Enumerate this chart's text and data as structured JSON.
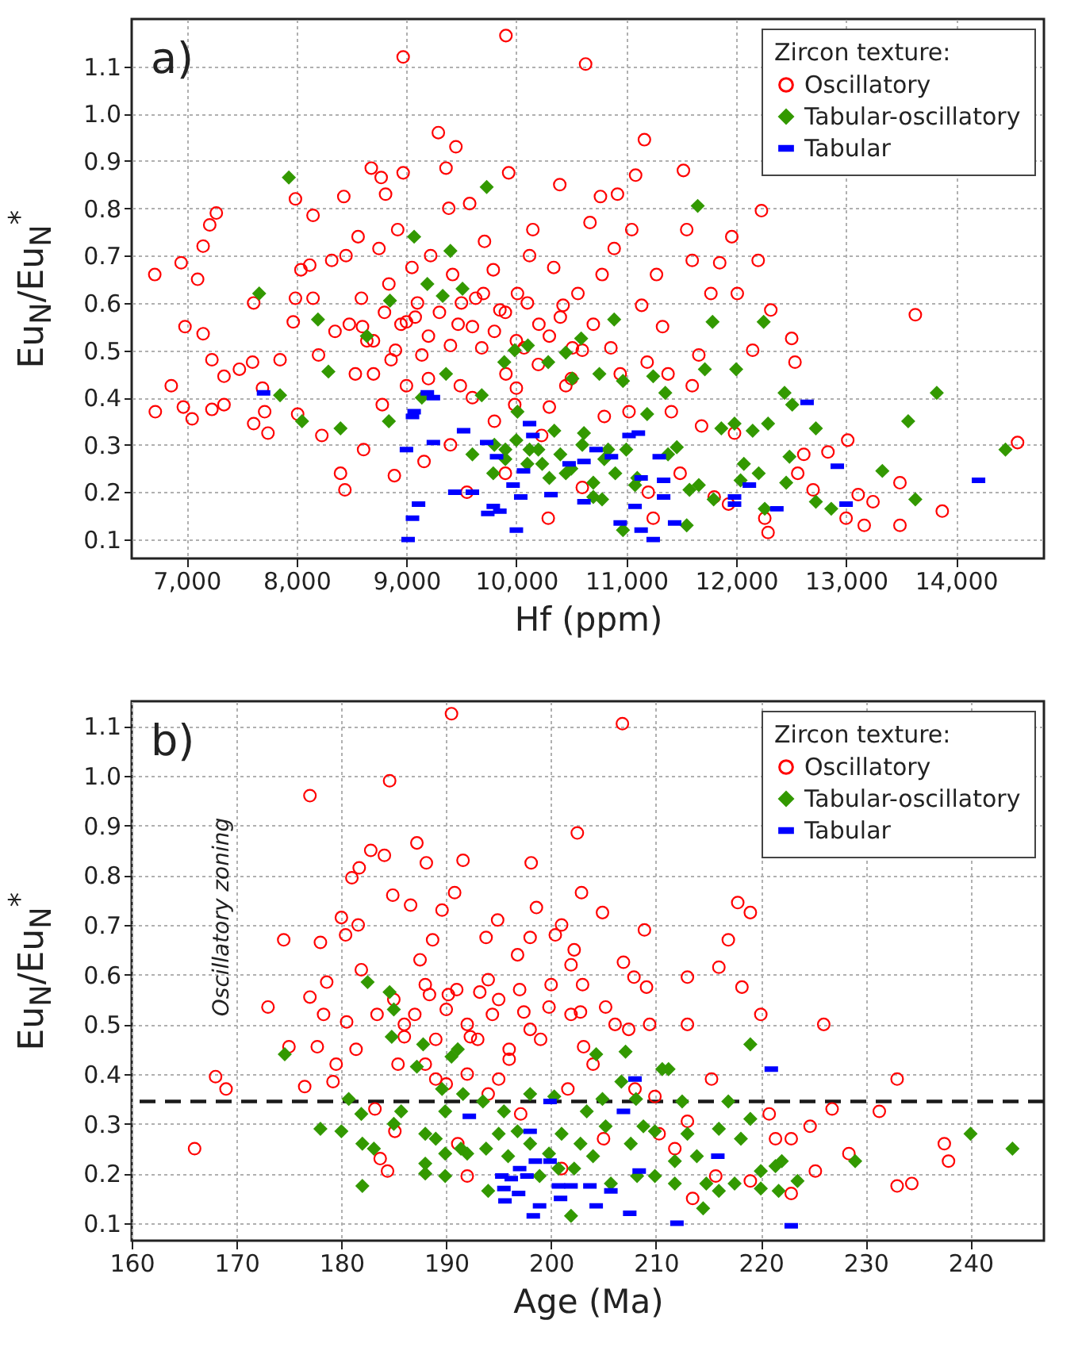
{
  "chart_data": [
    {
      "type": "scatter",
      "title": "a)",
      "xlabel": "Hf (ppm)",
      "ylabel": "Eu$_{N}$/Eu$_{N}$$^{*}$",
      "legend_title": "Zircon texture:",
      "legend": "top right",
      "grid": true,
      "xlim": [
        6500,
        14800
      ],
      "ylim": [
        0.06,
        1.2
      ],
      "xticks": [
        {
          "value": 7000,
          "label": "7,000"
        },
        {
          "value": 8000,
          "label": "8,000"
        },
        {
          "value": 9000,
          "label": "9,000"
        },
        {
          "value": 10000,
          "label": "10,000"
        },
        {
          "value": 11000,
          "label": "11,000"
        },
        {
          "value": 12000,
          "label": "12,000"
        },
        {
          "value": 13000,
          "label": "13,000"
        },
        {
          "value": 14000,
          "label": "14,000"
        }
      ],
      "yticks": [
        0.1,
        0.2,
        0.3,
        0.4,
        0.5,
        0.6,
        0.7,
        0.8,
        0.9,
        {
          "value": 1,
          "label": "1.0"
        },
        1.1
      ],
      "series": [
        {
          "name": "Oscillatory",
          "color": "#ff0000",
          "marker": "circle",
          "x": [
            6710,
            6715,
            6860,
            6950,
            6985,
            6970,
            7050,
            7100,
            7150,
            7150,
            7210,
            7270,
            7230,
            7230,
            7340,
            7340,
            7480,
            7600,
            7610,
            7610,
            7690,
            7740,
            7710,
            7850,
            7990,
            7990,
            7970,
            8040,
            8010,
            8120,
            8150,
            8150,
            8200,
            8230,
            8320,
            8350,
            8430,
            8450,
            8400,
            8440,
            8480,
            8535,
            8560,
            8590,
            8610,
            8640,
            8680,
            8750,
            8770,
            8810,
            8780,
            8840,
            8860,
            8890,
            8920,
            8950,
            8970,
            8970,
            9000,
            9050,
            9080,
            9140,
            9160,
            9220,
            9290,
            9360,
            9385,
            9450,
            9420,
            9470,
            9490,
            9550,
            9575,
            9630,
            9685,
            9710,
            9790,
            9850,
            9905,
            9905,
            9930,
            9985,
            10010,
            10070,
            10120,
            10150,
            10205,
            10230,
            10290,
            10340,
            10395,
            10425,
            10450,
            10510,
            10630,
            10560,
            10670,
            10700,
            10765,
            10780,
            10860,
            10890,
            10920,
            10945,
            11025,
            11050,
            11085,
            11165,
            11140,
            11190,
            11245,
            11275,
            11330,
            11380,
            11410,
            11490,
            11520,
            11550,
            11600,
            11600,
            11660,
            11685,
            11770,
            11850,
            11930,
            11960,
            12010,
            11985,
            12150,
            12200,
            12230,
            12260,
            12290,
            12315,
            12505,
            12535,
            12560,
            12615,
            12700,
            12835,
            13015,
            13000,
            13110,
            13165,
            13245,
            13490,
            13490,
            13630,
            13875,
            14560,
            8600,
            8700,
            8800,
            8900,
            9000,
            9100,
            9200,
            9300,
            9400,
            9500,
            9600,
            9700,
            9800,
            9900,
            10000,
            10100,
            10200,
            10300,
            10400,
            10500,
            10600,
            8700,
            9200,
            9600,
            9800,
            10000,
            10300,
            10800,
            9400,
            9900,
            10600,
            11200,
            11800
          ],
          "values": [
            0.66,
            0.37,
            0.425,
            0.685,
            0.55,
            0.38,
            0.355,
            0.65,
            0.535,
            0.72,
            0.765,
            0.79,
            0.48,
            0.375,
            0.445,
            0.385,
            0.46,
            0.475,
            0.6,
            0.345,
            0.42,
            0.325,
            0.37,
            0.48,
            0.82,
            0.61,
            0.56,
            0.67,
            0.365,
            0.68,
            0.785,
            0.61,
            0.49,
            0.32,
            0.69,
            0.54,
            0.825,
            0.7,
            0.24,
            0.205,
            0.555,
            0.45,
            0.74,
            0.61,
            0.29,
            0.52,
            0.885,
            0.715,
            0.865,
            0.83,
            0.385,
            0.64,
            0.48,
            0.235,
            0.755,
            0.555,
            0.875,
            1.12,
            0.425,
            0.675,
            0.57,
            0.49,
            0.265,
            0.7,
            0.96,
            0.885,
            0.8,
            0.93,
            0.66,
            0.555,
            0.425,
            0.2,
            0.81,
            0.61,
            0.505,
            0.73,
            0.67,
            0.585,
            1.165,
            0.45,
            0.875,
            0.385,
            0.62,
            0.505,
            0.7,
            0.755,
            0.555,
            0.32,
            0.145,
            0.675,
            0.85,
            0.595,
            0.425,
            0.505,
            1.105,
            0.62,
            0.77,
            0.555,
            0.825,
            0.66,
            0.505,
            0.715,
            0.83,
            0.45,
            0.37,
            0.755,
            0.87,
            0.945,
            0.595,
            0.475,
            0.145,
            0.66,
            0.55,
            0.45,
            0.37,
            0.24,
            0.88,
            0.755,
            0.69,
            0.425,
            0.49,
            0.34,
            0.62,
            0.685,
            0.175,
            0.74,
            0.62,
            0.325,
            0.5,
            0.69,
            0.795,
            0.145,
            0.115,
            0.585,
            0.525,
            0.475,
            0.24,
            0.28,
            0.205,
            0.285,
            0.31,
            0.145,
            0.195,
            0.13,
            0.18,
            0.22,
            0.13,
            0.575,
            0.16,
            0.305,
            0.55,
            0.52,
            0.58,
            0.5,
            0.56,
            0.6,
            0.53,
            0.58,
            0.51,
            0.6,
            0.55,
            0.62,
            0.54,
            0.58,
            0.52,
            0.6,
            0.47,
            0.53,
            0.57,
            0.44,
            0.5,
            0.45,
            0.44,
            0.4,
            0.35,
            0.42,
            0.38,
            0.36,
            0.3,
            0.24,
            0.21,
            0.2,
            0.19
          ]
        },
        {
          "name": "Tabular-oscillatory",
          "color": "#339900",
          "marker": "diamond",
          "x": [
            7930,
            7660,
            7850,
            8050,
            8195,
            8290,
            8400,
            8640,
            8850,
            9070,
            9190,
            9330,
            9400,
            9510,
            9360,
            9140,
            8840,
            9730,
            9685,
            9890,
            9985,
            10105,
            10010,
            9900,
            9790,
            10120,
            10290,
            10450,
            10510,
            10345,
            10235,
            10450,
            10590,
            10615,
            10755,
            10890,
            10970,
            10835,
            10780,
            10970,
            11080,
            11190,
            11245,
            11355,
            11380,
            11460,
            11550,
            11575,
            11650,
            11715,
            11785,
            11660,
            11795,
            11865,
            11985,
            12000,
            12040,
            12070,
            12150,
            12205,
            12250,
            12260,
            12290,
            12440,
            12455,
            12485,
            12510,
            12725,
            12725,
            12865,
            13330,
            13565,
            13630,
            13825,
            14450,
            9600,
            9800,
            9900,
            10000,
            10100,
            10200,
            10300,
            10400,
            10500,
            10600,
            10700,
            10800,
            10900,
            11000,
            11100,
            10700
          ],
          "values": [
            0.865,
            0.62,
            0.405,
            0.35,
            0.565,
            0.455,
            0.335,
            0.53,
            0.605,
            0.74,
            0.64,
            0.615,
            0.71,
            0.63,
            0.45,
            0.4,
            0.35,
            0.845,
            0.405,
            0.475,
            0.5,
            0.51,
            0.37,
            0.29,
            0.24,
            0.29,
            0.475,
            0.495,
            0.44,
            0.33,
            0.26,
            0.24,
            0.525,
            0.325,
            0.45,
            0.565,
            0.435,
            0.29,
            0.185,
            0.12,
            0.215,
            0.365,
            0.445,
            0.41,
            0.28,
            0.295,
            0.13,
            0.205,
            0.805,
            0.46,
            0.56,
            0.215,
            0.185,
            0.335,
            0.345,
            0.46,
            0.225,
            0.26,
            0.33,
            0.24,
            0.56,
            0.165,
            0.345,
            0.41,
            0.22,
            0.275,
            0.385,
            0.335,
            0.18,
            0.165,
            0.245,
            0.35,
            0.185,
            0.41,
            0.29,
            0.28,
            0.3,
            0.27,
            0.31,
            0.26,
            0.29,
            0.23,
            0.28,
            0.25,
            0.3,
            0.22,
            0.27,
            0.24,
            0.29,
            0.23,
            0.19
          ]
        },
        {
          "name": "Tabular",
          "color": "#0000ff",
          "x": [
            7700,
            9000,
            9015,
            9055,
            9110,
            9055,
            9070,
            9190,
            9245,
            9245,
            9440,
            9520,
            9600,
            9730,
            9740,
            9790,
            9850,
            9820,
            9970,
            10000,
            10040,
            10065,
            10120,
            10150,
            10315,
            10480,
            10615,
            10615,
            10725,
            10865,
            10945,
            11025,
            11080,
            11110,
            11135,
            11135,
            11245,
            11300,
            11340,
            11340,
            11440,
            11985,
            11985,
            12120,
            12370,
            12645,
            12920,
            13000,
            14205
          ],
          "values": [
            0.41,
            0.29,
            0.1,
            0.145,
            0.175,
            0.36,
            0.37,
            0.41,
            0.4,
            0.305,
            0.2,
            0.33,
            0.2,
            0.305,
            0.155,
            0.17,
            0.16,
            0.275,
            0.215,
            0.12,
            0.19,
            0.245,
            0.345,
            0.32,
            0.195,
            0.26,
            0.18,
            0.265,
            0.29,
            0.275,
            0.135,
            0.32,
            0.17,
            0.325,
            0.12,
            0.23,
            0.1,
            0.275,
            0.225,
            0.19,
            0.135,
            0.19,
            0.175,
            0.215,
            0.165,
            0.39,
            0.255,
            0.175,
            0.225
          ]
        }
      ]
    },
    {
      "type": "scatter",
      "title": "b)",
      "xlabel": "Age (Ma)",
      "ylabel": "Eu$_{N}$/Eu$_{N}$$^{*}$",
      "legend_title": "Zircon texture:",
      "legend": "top right",
      "grid": true,
      "xlim": [
        160,
        247
      ],
      "ylim": [
        0.065,
        1.15
      ],
      "xticks": [
        160,
        170,
        180,
        190,
        200,
        210,
        220,
        230,
        240
      ],
      "yticks": [
        0.1,
        0.2,
        0.3,
        0.4,
        0.5,
        0.6,
        0.7,
        0.8,
        0.9,
        {
          "value": 1,
          "label": "1.0"
        },
        1.1
      ],
      "annotations": [
        "Oscillatory zoning"
      ],
      "ref_lines": [
        {
          "axis": "y",
          "value": 0.345,
          "color": "#1a1a1a",
          "line_style": "dashed"
        }
      ],
      "series": [
        {
          "name": "Oscillatory",
          "color": "#ff0000",
          "marker": "circle",
          "x": [
            166,
            168,
            169,
            173,
            174.5,
            175,
            176.5,
            177,
            177,
            178,
            177.7,
            178.3,
            178.6,
            179.2,
            179.5,
            180,
            180.4,
            180.5,
            181,
            181.4,
            181.7,
            181.6,
            181.9,
            182.8,
            183.2,
            183.4,
            183.7,
            184.1,
            184.4,
            184.6,
            184.9,
            185.1,
            185.4,
            186,
            186.6,
            187.2,
            187.5,
            188.1,
            188.4,
            188.7,
            189,
            189.6,
            190.2,
            190.5,
            190.8,
            191.1,
            191.6,
            192,
            192.3,
            193.2,
            193.8,
            194.4,
            194.9,
            195,
            196.8,
            197.1,
            197.4,
            198,
            198.1,
            198.6,
            199.8,
            200.4,
            201,
            201,
            201.6,
            201.9,
            201.9,
            202.2,
            202.5,
            202.8,
            203.1,
            202.9,
            204,
            204.9,
            205.2,
            206.1,
            206.8,
            206.9,
            207.4,
            207.9,
            208.9,
            209.1,
            209.4,
            209.9,
            210.3,
            211.8,
            213,
            213,
            213,
            213.5,
            215.3,
            215.7,
            216,
            216.9,
            217.8,
            218.2,
            219,
            219,
            220,
            220.8,
            221.4,
            222.9,
            222.9,
            224.7,
            225.2,
            226,
            226.8,
            228.4,
            231.3,
            233,
            233,
            234.4,
            237.5,
            237.9,
            185,
            186,
            187,
            188,
            189,
            190,
            191,
            192,
            193,
            194,
            195,
            196,
            197,
            198,
            188,
            190,
            192,
            194,
            196,
            199,
            200,
            203,
            205,
            208
          ],
          "values": [
            0.25,
            0.395,
            0.37,
            0.535,
            0.67,
            0.455,
            0.375,
            0.96,
            0.555,
            0.665,
            0.455,
            0.52,
            0.585,
            0.385,
            0.42,
            0.715,
            0.68,
            0.505,
            0.795,
            0.45,
            0.815,
            0.7,
            0.61,
            0.85,
            0.33,
            0.52,
            0.23,
            0.84,
            0.205,
            0.99,
            0.76,
            0.285,
            0.42,
            0.475,
            0.74,
            0.865,
            0.63,
            0.825,
            0.56,
            0.67,
            0.39,
            0.73,
            0.56,
            1.125,
            0.765,
            0.26,
            0.83,
            0.195,
            0.475,
            0.565,
            0.675,
            0.52,
            0.71,
            0.39,
            0.64,
            0.32,
            0.525,
            0.675,
            0.825,
            0.735,
            0.535,
            0.68,
            0.7,
            0.21,
            0.37,
            0.52,
            0.62,
            0.65,
            0.885,
            0.525,
            0.455,
            0.765,
            0.42,
            0.725,
            0.535,
            0.5,
            1.105,
            0.625,
            0.49,
            0.595,
            0.69,
            0.575,
            0.5,
            0.355,
            0.28,
            0.25,
            0.595,
            0.5,
            0.305,
            0.15,
            0.39,
            0.195,
            0.615,
            0.67,
            0.745,
            0.575,
            0.725,
            0.185,
            0.52,
            0.32,
            0.27,
            0.27,
            0.16,
            0.295,
            0.205,
            0.5,
            0.33,
            0.24,
            0.325,
            0.39,
            0.175,
            0.18,
            0.26,
            0.225,
            0.55,
            0.5,
            0.52,
            0.58,
            0.47,
            0.53,
            0.57,
            0.5,
            0.47,
            0.59,
            0.55,
            0.45,
            0.57,
            0.49,
            0.42,
            0.38,
            0.4,
            0.36,
            0.43,
            0.47,
            0.58,
            0.58,
            0.27,
            0.37
          ]
        },
        {
          "name": "Tabular-oscillatory",
          "color": "#339900",
          "marker": "diamond",
          "x": [
            174.6,
            178,
            180,
            180.7,
            181.9,
            182,
            182,
            182.5,
            183.1,
            184.6,
            184.8,
            185,
            185,
            185.7,
            187.2,
            187.8,
            188,
            188,
            188,
            189,
            189.6,
            189.9,
            189.9,
            189.9,
            190.5,
            191.1,
            191.4,
            191.6,
            192,
            193.5,
            193.8,
            194,
            195,
            195.5,
            195.9,
            196.8,
            198,
            198,
            198.9,
            199.8,
            200.3,
            200.7,
            201,
            201.9,
            202.2,
            202.8,
            203.4,
            204,
            204.3,
            204.9,
            205.2,
            205.7,
            206.7,
            207.1,
            207.6,
            208.1,
            208.2,
            208.8,
            209.9,
            209.9,
            210.6,
            211.2,
            211.8,
            211.8,
            212.5,
            213,
            213.9,
            214.5,
            214.8,
            216,
            216,
            216.9,
            217.5,
            218.1,
            219,
            219,
            220,
            220,
            221.4,
            221.7,
            222,
            223.5,
            229,
            240,
            244
          ],
          "values": [
            0.44,
            0.29,
            0.285,
            0.35,
            0.32,
            0.26,
            0.175,
            0.585,
            0.25,
            0.565,
            0.475,
            0.53,
            0.3,
            0.325,
            0.415,
            0.46,
            0.28,
            0.22,
            0.2,
            0.27,
            0.37,
            0.325,
            0.24,
            0.195,
            0.435,
            0.45,
            0.25,
            0.36,
            0.24,
            0.345,
            0.25,
            0.165,
            0.28,
            0.325,
            0.235,
            0.285,
            0.36,
            0.26,
            0.195,
            0.24,
            0.355,
            0.21,
            0.28,
            0.115,
            0.21,
            0.26,
            0.325,
            0.235,
            0.44,
            0.35,
            0.295,
            0.18,
            0.385,
            0.445,
            0.26,
            0.35,
            0.195,
            0.295,
            0.285,
            0.195,
            0.41,
            0.41,
            0.225,
            0.18,
            0.345,
            0.28,
            0.235,
            0.13,
            0.18,
            0.29,
            0.165,
            0.345,
            0.18,
            0.27,
            0.46,
            0.31,
            0.205,
            0.17,
            0.215,
            0.165,
            0.225,
            0.185,
            0.225,
            0.28,
            0.25
          ]
        },
        {
          "name": "Tabular",
          "color": "#0000ff",
          "x": [
            192.2,
            195.3,
            195.5,
            195.6,
            196.2,
            196.9,
            197,
            198,
            197.7,
            198.3,
            198.5,
            198.9,
            199.9,
            199.9,
            200.7,
            200.9,
            201.9,
            203.7,
            204.3,
            205.7,
            206.9,
            207.5,
            208,
            208.4,
            212,
            215.9,
            221,
            222.9
          ],
          "values": [
            0.315,
            0.195,
            0.17,
            0.145,
            0.19,
            0.16,
            0.21,
            0.285,
            0.195,
            0.115,
            0.225,
            0.135,
            0.225,
            0.345,
            0.175,
            0.15,
            0.175,
            0.175,
            0.135,
            0.165,
            0.325,
            0.12,
            0.39,
            0.205,
            0.1,
            0.235,
            0.41,
            0.095
          ]
        }
      ]
    }
  ]
}
